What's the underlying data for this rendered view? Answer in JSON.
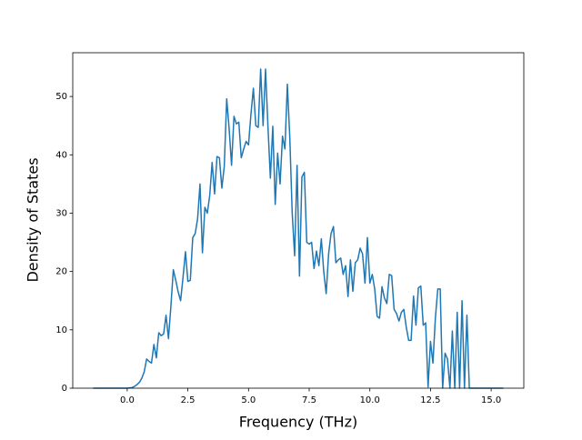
{
  "chart_data": {
    "type": "line",
    "x_label": "Frequency (THz)",
    "y_label": "Density of States",
    "xlim": [
      -2.245,
      16.345
    ],
    "ylim": [
      0,
      57.5
    ],
    "xticks": [
      {
        "value": 0,
        "label": "0.0"
      },
      {
        "value": 2.5,
        "label": "2.5"
      },
      {
        "value": 5,
        "label": "5.0"
      },
      {
        "value": 7.5,
        "label": "7.5"
      },
      {
        "value": 10,
        "label": "10.0"
      },
      {
        "value": 12.5,
        "label": "12.5"
      },
      {
        "value": 15,
        "label": "15.0"
      }
    ],
    "yticks": [
      0,
      10,
      20,
      30,
      40,
      50
    ],
    "grid": false,
    "x": [
      -1.4,
      -1.3,
      -1.2,
      -1.1,
      -1.0,
      -0.9,
      -0.8,
      -0.7,
      -0.6,
      -0.5,
      -0.4,
      -0.3,
      -0.2,
      -0.1,
      0.0,
      0.1,
      0.2,
      0.3,
      0.4,
      0.5,
      0.6,
      0.7,
      0.8,
      0.9,
      1.0,
      1.1,
      1.2,
      1.3,
      1.4,
      1.5,
      1.6,
      1.7,
      1.8,
      1.9,
      2.0,
      2.1,
      2.2,
      2.3,
      2.4,
      2.5,
      2.6,
      2.7,
      2.8,
      2.9,
      3.0,
      3.1,
      3.2,
      3.3,
      3.4,
      3.5,
      3.6,
      3.7,
      3.8,
      3.9,
      4.0,
      4.1,
      4.2,
      4.3,
      4.4,
      4.5,
      4.6,
      4.7,
      4.8,
      4.9,
      5.0,
      5.1,
      5.2,
      5.3,
      5.4,
      5.5,
      5.6,
      5.7,
      5.8,
      5.9,
      6.0,
      6.1,
      6.2,
      6.3,
      6.4,
      6.5,
      6.6,
      6.7,
      6.8,
      6.9,
      7.0,
      7.1,
      7.2,
      7.3,
      7.4,
      7.5,
      7.6,
      7.7,
      7.8,
      7.9,
      8.0,
      8.1,
      8.2,
      8.3,
      8.4,
      8.5,
      8.6,
      8.7,
      8.8,
      8.9,
      9.0,
      9.1,
      9.2,
      9.3,
      9.4,
      9.5,
      9.6,
      9.7,
      9.8,
      9.9,
      10.0,
      10.1,
      10.2,
      10.3,
      10.4,
      10.5,
      10.6,
      10.7,
      10.8,
      10.9,
      11.0,
      11.1,
      11.2,
      11.3,
      11.4,
      11.5,
      11.6,
      11.7,
      11.8,
      11.9,
      12.0,
      12.1,
      12.2,
      12.3,
      12.4,
      12.5,
      12.6,
      12.7,
      12.8,
      12.9,
      13.0,
      13.1,
      13.2,
      13.3,
      13.4,
      13.5,
      13.6,
      13.7,
      13.8,
      13.9,
      14.0,
      14.1,
      14.2,
      14.3,
      14.4,
      14.5,
      14.6,
      14.7,
      14.8,
      14.9,
      15.0,
      15.1,
      15.2,
      15.3,
      15.4,
      15.5
    ],
    "series": [
      {
        "color": "#1f77b4",
        "values": [
          0,
          0,
          0,
          0,
          0,
          0,
          0,
          0,
          0,
          0,
          0,
          0,
          0,
          0,
          0,
          0.05,
          0.1,
          0.3,
          0.6,
          1.0,
          1.7,
          2.8,
          5.0,
          4.6,
          4.3,
          7.5,
          5.2,
          9.5,
          9.0,
          9.3,
          12.5,
          8.5,
          14,
          20.3,
          18.5,
          16.5,
          15,
          19,
          23.4,
          18.3,
          18.5,
          25.8,
          26.5,
          29,
          35,
          23.2,
          31,
          30,
          33,
          38.7,
          33.3,
          39.7,
          39.5,
          34.3,
          38,
          49.6,
          44.5,
          38.2,
          46.6,
          45.3,
          45.6,
          39.5,
          41,
          42.3,
          41.7,
          47,
          51.4,
          45,
          44.7,
          54.7,
          45,
          54.7,
          44.9,
          36,
          44.9,
          31.5,
          40.3,
          35,
          43.2,
          41,
          52.1,
          43,
          30,
          22.7,
          38.2,
          19.2,
          36.2,
          37,
          25,
          24.7,
          25,
          20.5,
          23.5,
          21,
          25.6,
          20,
          16.2,
          23,
          26.5,
          27.7,
          21.5,
          22,
          22.3,
          19.5,
          21,
          15.7,
          22,
          16.6,
          21.5,
          22,
          24,
          23,
          18,
          25.8,
          18,
          19.5,
          17,
          12.3,
          12,
          17.4,
          15.5,
          14.5,
          19.5,
          19.3,
          13.5,
          12.8,
          11.5,
          13,
          13.5,
          10.5,
          8.2,
          8.2,
          15.8,
          10.8,
          17.2,
          17.5,
          10.8,
          11.2,
          0.2,
          8,
          4.3,
          12,
          17,
          17,
          0,
          6,
          5,
          0,
          9.8,
          0,
          13,
          0,
          15,
          0,
          12.5,
          0,
          0,
          0,
          0,
          0,
          0,
          0,
          0,
          0,
          0,
          0,
          0,
          0,
          0,
          0
        ]
      }
    ]
  }
}
